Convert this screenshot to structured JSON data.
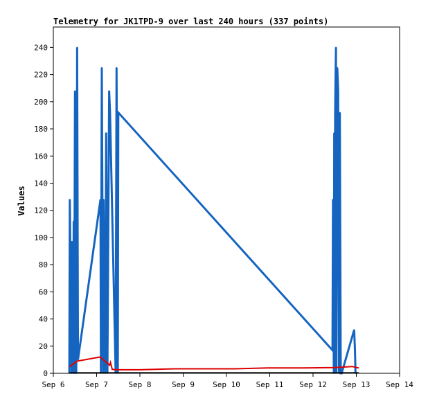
{
  "chart_data": {
    "type": "line",
    "title": "Telemetry for JK1TPD-9 over last 240 hours (337 points)",
    "xlabel": "",
    "ylabel": "Values",
    "x_tick_labels": [
      "Sep 6",
      "Sep 7",
      "Sep 8",
      "Sep 9",
      "Sep 10",
      "Sep 11",
      "Sep 12",
      "Sep 13",
      "Sep 14"
    ],
    "x_ticks_day": [
      6,
      7,
      8,
      9,
      10,
      11,
      12,
      13,
      14
    ],
    "xlim_day": [
      6,
      14
    ],
    "y_tick_labels": [
      "0",
      "20",
      "40",
      "60",
      "80",
      "100",
      "120",
      "140",
      "160",
      "180",
      "200",
      "220",
      "240"
    ],
    "y_ticks": [
      0,
      20,
      40,
      60,
      80,
      100,
      120,
      140,
      160,
      180,
      200,
      220,
      240
    ],
    "ylim": [
      0,
      255
    ],
    "grid": false,
    "legend": "none",
    "colors": {
      "blue_series": "#1565c0",
      "red_series": "#dd0000",
      "black_series": "#000000"
    },
    "series": [
      {
        "key": "blue",
        "color": "#1565c0",
        "x_day": [
          6.37,
          6.38,
          6.42,
          6.43,
          6.46,
          6.47,
          6.48,
          6.5,
          6.51,
          6.52,
          6.53,
          6.55,
          6.57,
          7.09,
          7.1,
          7.12,
          7.15,
          7.16,
          7.2,
          7.22,
          7.25,
          7.29,
          7.31,
          7.44,
          7.46,
          7.49,
          7.5,
          12.45,
          12.46,
          12.48,
          12.49,
          12.5,
          12.51,
          12.53,
          12.54,
          12.56,
          12.58,
          12.6,
          12.62,
          12.64,
          12.66,
          12.95,
          12.97,
          12.98
        ],
        "y": [
          0,
          128,
          0,
          97,
          0,
          112,
          0,
          208,
          0,
          160,
          0,
          240,
          10,
          128,
          0,
          225,
          0,
          128,
          0,
          177,
          0,
          208,
          192,
          0,
          225,
          0,
          192,
          17,
          128,
          0,
          177,
          0,
          192,
          240,
          0,
          225,
          208,
          0,
          192,
          0,
          0,
          32,
          16,
          0
        ]
      },
      {
        "key": "red",
        "color": "#dd0000",
        "x_day": [
          6.38,
          6.55,
          7.08,
          7.3,
          7.32,
          7.36,
          7.42,
          7.6,
          8.0,
          8.8,
          9.5,
          10.2,
          11.0,
          11.8,
          12.5,
          12.9,
          13.05
        ],
        "y": [
          5,
          9,
          12,
          6,
          8,
          3,
          2.6,
          2.6,
          2.6,
          3.3,
          3.3,
          3.3,
          4,
          4,
          4.2,
          5,
          4
        ]
      },
      {
        "key": "black",
        "color": "#000000",
        "x_day": [
          6.38,
          7.5,
          8.5,
          9.5,
          10.5,
          11.5,
          12.5,
          13.05
        ],
        "y": [
          0.3,
          0.3,
          0.3,
          0.3,
          0.3,
          0.3,
          0.3,
          0.3
        ]
      }
    ]
  }
}
